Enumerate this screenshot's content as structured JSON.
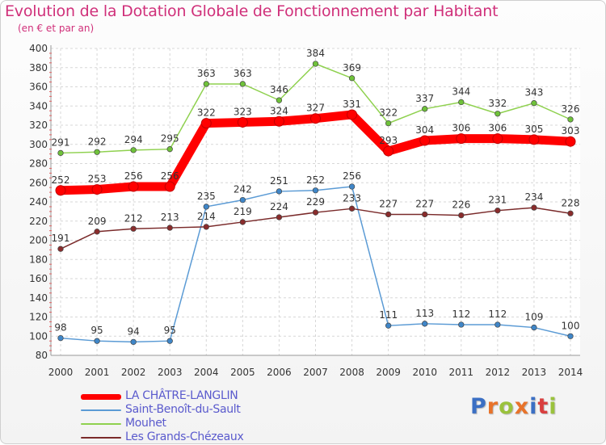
{
  "header": {
    "title": "Evolution de la Dotation Globale de Fonctionnement par Habitant",
    "subtitle": "(en € et par an)"
  },
  "logo": {
    "text": "Proxiti",
    "colors": [
      "#3b6fc4",
      "#e8732a",
      "#9ac23c",
      "#e8732a",
      "#3b6fc4",
      "#d93f3f",
      "#9ac23c"
    ]
  },
  "chart_data": {
    "type": "line",
    "title": "Evolution de la Dotation Globale de Fonctionnement par Habitant",
    "subtitle": "(en € et par an)",
    "xlabel": "",
    "ylabel": "",
    "x": [
      "2000",
      "2001",
      "2002",
      "2003",
      "2004",
      "2005",
      "2006",
      "2007",
      "2008",
      "2009",
      "2010",
      "2011",
      "2012",
      "2013",
      "2014"
    ],
    "ylim": [
      80,
      400
    ],
    "yticks": [
      80,
      100,
      120,
      140,
      160,
      180,
      200,
      220,
      240,
      260,
      280,
      300,
      320,
      340,
      360,
      380,
      400
    ],
    "grid": true,
    "legend_position": "bottom-left",
    "series": [
      {
        "name": "Mouhet",
        "color": "#8fd14f",
        "marker": "#6fc23a",
        "values": [
          291,
          292,
          294,
          295,
          363,
          363,
          346,
          384,
          369,
          322,
          337,
          344,
          332,
          343,
          326
        ],
        "labels": [
          "291",
          "292",
          "294",
          "295",
          "363",
          "363",
          "346",
          "384",
          "369",
          "322",
          "337",
          "344",
          "332",
          "343",
          "326"
        ]
      },
      {
        "name": "Saint-Benoît-du-Sault",
        "color": "#5b9bd5",
        "marker": "#3f86c8",
        "values": [
          98,
          95,
          94,
          95,
          235,
          242,
          251,
          252,
          256,
          111,
          113,
          112,
          112,
          109,
          100
        ],
        "labels": [
          "98",
          "95",
          "94",
          "95",
          "235",
          "242",
          "251",
          "252",
          "256",
          "111",
          "113",
          "112",
          "112",
          "109",
          "100"
        ]
      },
      {
        "name": "Les Grands-Chézeaux",
        "color": "#7a2a2a",
        "marker": "#8a2c2c",
        "values": [
          191,
          209,
          212,
          213,
          214,
          219,
          224,
          229,
          233,
          227,
          227,
          226,
          231,
          234,
          228
        ],
        "labels": [
          "191",
          "209",
          "212",
          "213",
          "214",
          "219",
          "224",
          "229",
          "233",
          "227",
          "227",
          "226",
          "231",
          "234",
          "228"
        ]
      },
      {
        "name": "LA CHÂTRE-LANGLIN",
        "color": "#ff0000",
        "marker": "#ff0000",
        "values": [
          252,
          253,
          256,
          256,
          322,
          323,
          324,
          327,
          331,
          293,
          304,
          306,
          306,
          305,
          303
        ],
        "labels": [
          "252",
          "253",
          "256",
          "256",
          "322",
          "323",
          "324",
          "327",
          "331",
          "293",
          "304",
          "306",
          "306",
          "305",
          "303"
        ]
      }
    ]
  },
  "legend": {
    "items": [
      {
        "name": "LA CHÂTRE-LANGLIN",
        "color": "#ff0000"
      },
      {
        "name": "Saint-Benoît-du-Sault",
        "color": "#5b9bd5"
      },
      {
        "name": "Mouhet",
        "color": "#8fd14f"
      },
      {
        "name": "Les Grands-Chézeaux",
        "color": "#7a2a2a"
      }
    ]
  }
}
